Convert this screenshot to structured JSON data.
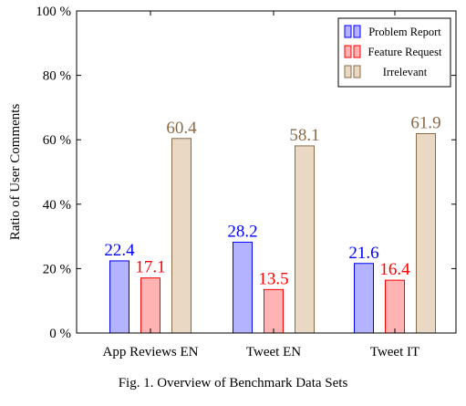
{
  "chart_data": {
    "type": "bar",
    "categories": [
      "App Reviews EN",
      "Tweet EN",
      "Tweet IT"
    ],
    "series": [
      {
        "name": "Problem Report",
        "values": [
          22.4,
          28.2,
          21.6
        ],
        "fill": "#b3b3ff",
        "stroke": "#0000ff",
        "label_color": "#0000ff"
      },
      {
        "name": "Feature Request",
        "values": [
          17.1,
          13.5,
          16.4
        ],
        "fill": "#ffb3b3",
        "stroke": "#ff0000",
        "label_color": "#ff0000"
      },
      {
        "name": "Irrelevant",
        "values": [
          60.4,
          58.1,
          61.9
        ],
        "fill": "#e9d9c4",
        "stroke": "#8b6a47",
        "label_color": "#8b6a47"
      }
    ],
    "data_labels": [
      [
        "22.4",
        "28.2",
        "21.6"
      ],
      [
        "17.1",
        "13.5",
        "16.4"
      ],
      [
        "60.4",
        "58.1",
        "61.9"
      ]
    ],
    "ylabel": "Ratio of User Comments",
    "ylim": [
      0,
      100
    ],
    "yticks": [
      0,
      20,
      40,
      60,
      80,
      100
    ],
    "ytick_labels": [
      "0 %",
      "20 %",
      "40 %",
      "60 %",
      "80 %",
      "100 %"
    ],
    "legend_position": "top-right",
    "grid": false
  },
  "caption": "Fig. 1.  Overview of Benchmark Data Sets"
}
